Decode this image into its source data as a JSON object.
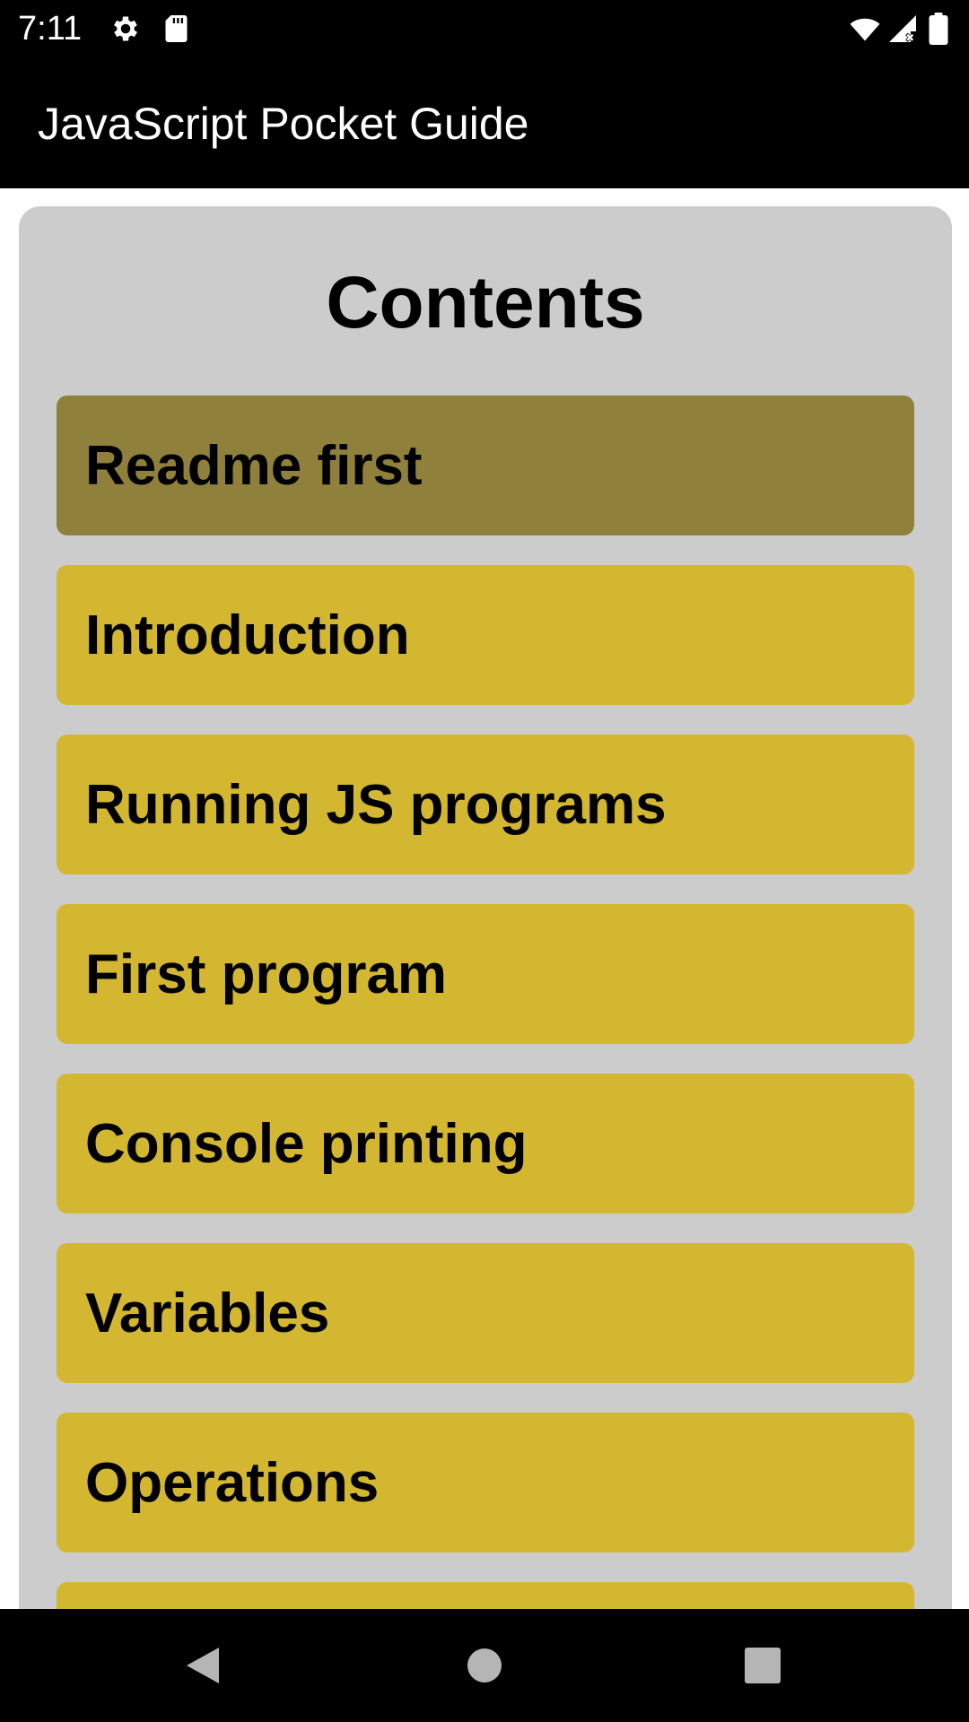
{
  "status_bar": {
    "time": "7:11",
    "icons": [
      "settings-icon",
      "sd-card-icon",
      "wifi-icon",
      "cell-signal-icon",
      "battery-icon"
    ]
  },
  "app_bar": {
    "title": "JavaScript Pocket Guide"
  },
  "contents": {
    "heading": "Contents",
    "items": [
      {
        "label": "Readme first",
        "selected": true
      },
      {
        "label": "Introduction",
        "selected": false
      },
      {
        "label": "Running JS programs",
        "selected": false
      },
      {
        "label": "First program",
        "selected": false
      },
      {
        "label": "Console printing",
        "selected": false
      },
      {
        "label": "Variables",
        "selected": false
      },
      {
        "label": "Operations",
        "selected": false
      },
      {
        "label": "",
        "selected": false
      }
    ]
  },
  "colors": {
    "item_background": "#d4b731",
    "item_selected_background": "#8f803b",
    "card_background": "#cccccc"
  },
  "nav_bar": {
    "buttons": [
      "back-icon",
      "home-icon",
      "recents-icon"
    ]
  }
}
